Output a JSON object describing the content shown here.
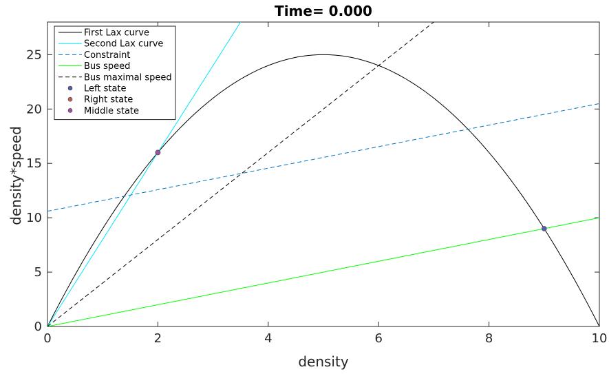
{
  "chart_data": {
    "type": "line",
    "title": "Time= 0.000",
    "xlabel": "density",
    "ylabel": "density*speed",
    "xlim": [
      0,
      10
    ],
    "ylim": [
      0,
      28
    ],
    "xticks": [
      0,
      2,
      4,
      6,
      8,
      10
    ],
    "yticks": [
      0,
      5,
      10,
      15,
      20,
      25
    ],
    "grid": false,
    "legend_position": "top-left",
    "series": [
      {
        "name": "First Lax curve",
        "kind": "curve",
        "formula": "10x - x^2",
        "x_range": [
          0,
          10
        ],
        "color": "#000000",
        "dash": "solid"
      },
      {
        "name": "Second Lax curve",
        "kind": "line",
        "points": [
          [
            0,
            0
          ],
          [
            3.5,
            28
          ]
        ],
        "color": "#00e5ff",
        "dash": "solid"
      },
      {
        "name": "Constraint",
        "kind": "line",
        "points": [
          [
            0,
            10.6
          ],
          [
            10,
            20.5
          ]
        ],
        "color": "#0072bd",
        "dash": "dashed"
      },
      {
        "name": "Bus speed",
        "kind": "line",
        "points": [
          [
            0,
            0
          ],
          [
            10,
            10
          ]
        ],
        "color": "#00ff00",
        "dash": "solid"
      },
      {
        "name": "Bus maximal speed",
        "kind": "line",
        "points": [
          [
            0,
            0
          ],
          [
            7,
            28
          ]
        ],
        "color": "#000000",
        "dash": "dashed"
      }
    ],
    "points": [
      {
        "name": "Left state",
        "x": 9,
        "y": 9,
        "color": "#5b5ba8"
      },
      {
        "name": "Right state",
        "x": 2,
        "y": 16,
        "color": "#c0605a"
      },
      {
        "name": "Middle state",
        "x": 2,
        "y": 16,
        "color": "#a050a8"
      }
    ]
  }
}
